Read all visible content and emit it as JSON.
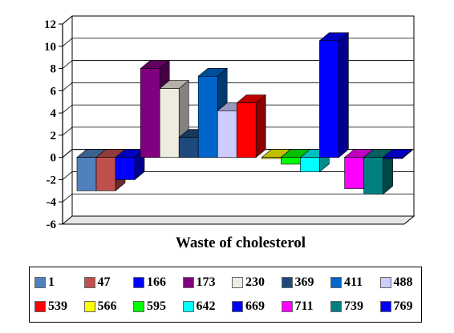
{
  "chart_data": {
    "type": "bar",
    "title": "",
    "xlabel": "Waste of cholesterol",
    "ylabel": "",
    "ylim": [
      -6,
      12
    ],
    "yticks": [
      "12",
      "10",
      "8",
      "6",
      "4",
      "2",
      "0",
      "-2",
      "-4",
      "-6"
    ],
    "grid": true,
    "legend_position": "bottom",
    "series": [
      {
        "name": "1",
        "value": -3.0,
        "color": "#4f81bd"
      },
      {
        "name": "47",
        "value": -3.0,
        "color": "#c0504d"
      },
      {
        "name": "166",
        "value": -2.0,
        "color": "#0000ff"
      },
      {
        "name": "173",
        "value": 8.0,
        "color": "#800080"
      },
      {
        "name": "230",
        "value": 6.2,
        "color": "#eeece1"
      },
      {
        "name": "369",
        "value": 1.8,
        "color": "#1f497d"
      },
      {
        "name": "411",
        "value": 7.3,
        "color": "#0066cc"
      },
      {
        "name": "488",
        "value": 4.2,
        "color": "#ccccff"
      },
      {
        "name": "539",
        "value": 4.9,
        "color": "#ff0000"
      },
      {
        "name": "566",
        "value": -0.1,
        "color": "#ffff00"
      },
      {
        "name": "595",
        "value": -0.6,
        "color": "#00ff00"
      },
      {
        "name": "642",
        "value": -1.3,
        "color": "#00ffff"
      },
      {
        "name": "669",
        "value": 10.5,
        "color": "#0000ff"
      },
      {
        "name": "711",
        "value": -2.8,
        "color": "#ff00ff"
      },
      {
        "name": "739",
        "value": -3.3,
        "color": "#008080"
      },
      {
        "name": "769",
        "value": -0.1,
        "color": "#0000ff"
      }
    ]
  }
}
